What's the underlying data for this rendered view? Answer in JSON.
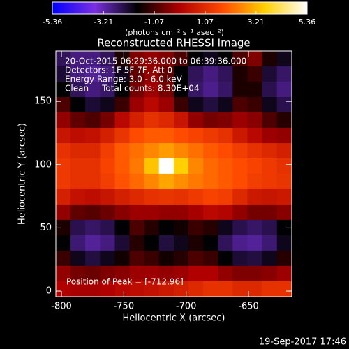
{
  "chart_data": {
    "type": "heatmap",
    "title": "Reconstructed RHESSI Image",
    "x_label": "Heliocentric X (arcsec)",
    "y_label": "Heliocentric Y (arcsec)",
    "annotations": [
      "20-Oct-2015 06:29:36.000 to 06:39:36.000",
      "Detectors: 1F 5F 7F, Att 0",
      "Energy Range: 3.0 - 6.0 keV",
      "Clean     Total counts: 8.30E+04"
    ],
    "peak_label": "Position of Peak = [-712,96]",
    "timestamp": "19-Sep-2017 17:46",
    "colorbar": {
      "label": "(photons cm⁻² s⁻¹ asec⁻²)",
      "lim": [
        -5.36,
        5.36
      ],
      "ticks": [
        -5.36,
        -3.21,
        -1.07,
        1.07,
        3.21,
        5.36
      ],
      "colors": [
        "#0000ff",
        "#7a30e0",
        "#000000",
        "#b00000",
        "#ff4a00",
        "#ffd000",
        "#ffffff"
      ]
    },
    "xlim": [
      -804.5,
      -615.3
    ],
    "ylim": [
      -4.4,
      189.8
    ],
    "xticks": [
      -800,
      -750,
      -700,
      -650
    ],
    "yticks": [
      0,
      50,
      100,
      150
    ],
    "x": [
      -798.6,
      -786.8,
      -775,
      -763.1,
      -751.3,
      -739.5,
      -727.7,
      -715.9,
      -704,
      -692.2,
      -680.4,
      -668.6,
      -656.8,
      -645,
      -633.1,
      -621.3
    ],
    "y": [
      183.7,
      171.6,
      159.5,
      147.3,
      135.2,
      123.1,
      110.9,
      98.8,
      86.7,
      74.5,
      62.4,
      50.3,
      38.1,
      26,
      13.9,
      1.7
    ],
    "z": [
      [
        -2.5,
        -2.8,
        -2.8,
        -2.5,
        -1.5,
        -0.5,
        -0.3,
        -0.5,
        -1,
        -1.8,
        -2,
        -1.8,
        -1,
        -0.5,
        -1.5,
        -2
      ],
      [
        -2.2,
        -2.8,
        -3,
        -2.8,
        -2,
        -0.8,
        -0.3,
        -0.8,
        -1.8,
        -2.5,
        -2.8,
        -2.5,
        -1.5,
        -1.2,
        -2.2,
        -2.6
      ],
      [
        -1.8,
        -2.5,
        -2.8,
        -2.6,
        -1.8,
        -0.6,
        -0.2,
        -0.6,
        -1.8,
        -2.6,
        -2.9,
        -2.6,
        -1.5,
        -1.5,
        -2.4,
        -2.8
      ],
      [
        -1,
        -1.8,
        -2.2,
        -2,
        -1.2,
        -0.2,
        0.2,
        -0.2,
        -1.2,
        -2,
        -2.3,
        -2,
        -1,
        -1.2,
        -2,
        -2.4
      ],
      [
        -0.3,
        -0.8,
        -1,
        -0.6,
        0.2,
        0.8,
        1.2,
        1,
        0.5,
        -0.3,
        -0.6,
        -0.5,
        -0.2,
        -0.4,
        -1,
        -1.4
      ],
      [
        0.5,
        0.3,
        0.4,
        0.8,
        1.3,
        1.8,
        2,
        2,
        1.8,
        1.6,
        1.4,
        1.2,
        0.6,
        0.2,
        -0.2,
        -0.3
      ],
      [
        1.2,
        1,
        1,
        1.5,
        2,
        2.3,
        2.6,
        2.9,
        2.6,
        2.3,
        2,
        1.8,
        1.5,
        1.2,
        1,
        0.8
      ],
      [
        1.4,
        1.2,
        1.2,
        1.6,
        2,
        2.4,
        3.4,
        5.36,
        3.6,
        2.6,
        2.2,
        2,
        1.8,
        1.6,
        1.4,
        1.2
      ],
      [
        1.4,
        1.2,
        1.2,
        1.5,
        1.9,
        2.2,
        2.6,
        3,
        2.7,
        2.4,
        2.2,
        2,
        1.8,
        1.5,
        1.4,
        1.3
      ],
      [
        0.8,
        0.4,
        0.3,
        0.5,
        0.8,
        1,
        1.2,
        1.3,
        1.2,
        1.4,
        1.6,
        1.5,
        1,
        0.6,
        0.5,
        0.6
      ],
      [
        -0.3,
        -0.8,
        -0.9,
        -0.7,
        -0.4,
        -0.2,
        -0.2,
        -0.3,
        -0.3,
        -0.1,
        0.2,
        0.1,
        -0.3,
        -0.6,
        -0.6,
        -0.4
      ],
      [
        -1.5,
        -2.4,
        -2.6,
        -2.4,
        -1.8,
        -1,
        -1.4,
        -1.8,
        -1.6,
        -1.2,
        -1.4,
        -2,
        -2.4,
        -2.6,
        -2.4,
        -1.8
      ],
      [
        -1.8,
        -2.7,
        -3,
        -2.8,
        -2.2,
        -1.4,
        -1.8,
        -2.3,
        -2,
        -1.5,
        -1.8,
        -2.5,
        -2.9,
        -3,
        -2.7,
        -2
      ],
      [
        -1.2,
        -2,
        -2.3,
        -2,
        -1.6,
        -1,
        -1.2,
        -1.6,
        -1.4,
        -1,
        -1.2,
        -1.8,
        -2.2,
        -2.3,
        -2,
        -1.4
      ],
      [
        -0.3,
        -0.6,
        -0.7,
        -0.5,
        -0.4,
        -0.2,
        -0.2,
        -0.3,
        -0.2,
        0,
        0,
        -0.3,
        -0.5,
        -0.5,
        -0.4,
        -0.2
      ],
      [
        0,
        -0.1,
        -0.1,
        0,
        0.2,
        0.3,
        0.4,
        0.6,
        0.8,
        1,
        1.2,
        1.2,
        1,
        1,
        1.2,
        1.2
      ]
    ]
  }
}
